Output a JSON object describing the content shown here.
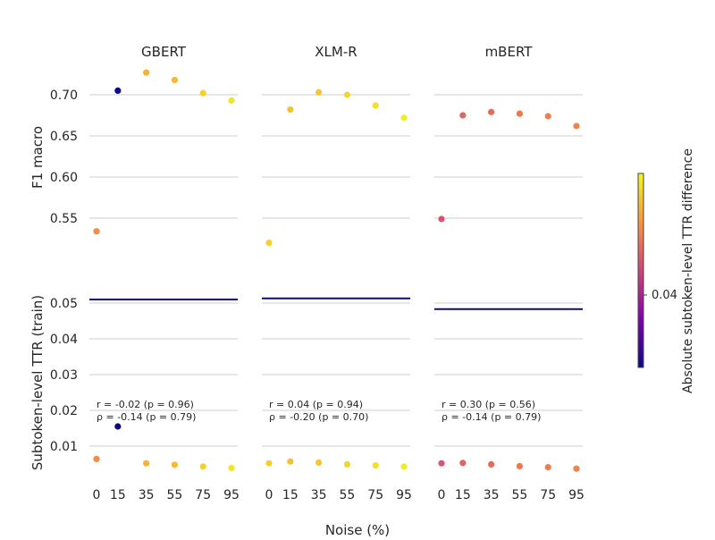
{
  "chart_data": {
    "type": "scatter",
    "xlabel": "Noise (%)",
    "x_ticks": [
      "0",
      "15",
      "35",
      "55",
      "75",
      "95"
    ],
    "x": [
      0,
      15,
      35,
      55,
      75,
      95
    ],
    "top_ylabel": "F1 macro",
    "top_yticks": [
      "0.55",
      "0.60",
      "0.65",
      "0.70"
    ],
    "top_ylim": [
      0.495,
      0.74
    ],
    "bottom_ylabel": "Subtoken-level TTR (train)",
    "bottom_yticks": [
      "0.01",
      "0.02",
      "0.03",
      "0.04",
      "0.05"
    ],
    "bottom_ylim": [
      0.0,
      0.06
    ],
    "colorbar": {
      "label": "Absolute subtoken-level TTR difference",
      "tick_label": "0.04",
      "range": [
        0.0,
        1.0
      ],
      "low_color": "#0d0887",
      "high_color": "#f0f921"
    },
    "panels": [
      {
        "title": "GBERT",
        "f1": [
          0.534,
          0.705,
          0.727,
          0.718,
          0.702,
          0.693
        ],
        "ttr": [
          0.0064,
          0.0155,
          0.0052,
          0.0048,
          0.0043,
          0.0039
        ],
        "reference_ttr": 0.051,
        "annotation": [
          "r = -0.02 (p = 0.96)",
          "ρ = -0.14 (p = 0.79)"
        ],
        "color_values": [
          0.72,
          0.0,
          0.82,
          0.84,
          0.9,
          0.95
        ]
      },
      {
        "title": "XLM-R",
        "f1": [
          0.52,
          0.682,
          0.703,
          0.7,
          0.687,
          0.672
        ],
        "ttr": [
          0.0052,
          0.0057,
          0.0054,
          0.0049,
          0.0046,
          0.0043
        ],
        "reference_ttr": 0.0513,
        "annotation": [
          "r = 0.04 (p = 0.94)",
          "ρ = -0.20 (p = 0.70)"
        ],
        "color_values": [
          0.9,
          0.86,
          0.88,
          0.91,
          0.94,
          0.97
        ]
      },
      {
        "title": "mBERT",
        "f1": [
          0.549,
          0.675,
          0.679,
          0.677,
          0.674,
          0.662
        ],
        "ttr": [
          0.0052,
          0.0053,
          0.0049,
          0.0044,
          0.0041,
          0.0037
        ],
        "reference_ttr": 0.0483,
        "annotation": [
          "r = 0.30 (p = 0.56)",
          "ρ = -0.14 (p = 0.79)"
        ],
        "color_values": [
          0.55,
          0.6,
          0.62,
          0.66,
          0.68,
          0.7
        ]
      }
    ]
  }
}
